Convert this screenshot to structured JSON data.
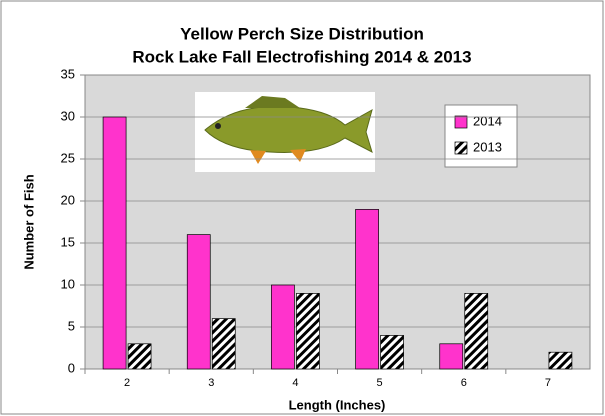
{
  "chart_data": {
    "type": "bar",
    "title": "Yellow Perch Size Distribution",
    "subtitle": "Rock Lake Fall Electrofishing  2014 & 2013",
    "x_label": "Length (Inches)",
    "y_label": "Number of Fish",
    "categories": [
      "2",
      "3",
      "4",
      "5",
      "6",
      "7"
    ],
    "series": [
      {
        "name": "2014",
        "color": "#ff33cc",
        "hatch": false,
        "values": [
          30,
          16,
          10,
          19,
          3,
          0
        ]
      },
      {
        "name": "2013",
        "color": "#000000",
        "hatch": true,
        "values": [
          3,
          6,
          9,
          4,
          9,
          2
        ]
      }
    ],
    "ylim": [
      0,
      35
    ],
    "yticks": [
      0,
      5,
      10,
      15,
      20,
      25,
      30,
      35
    ],
    "grid": true,
    "legend": "top-right"
  }
}
